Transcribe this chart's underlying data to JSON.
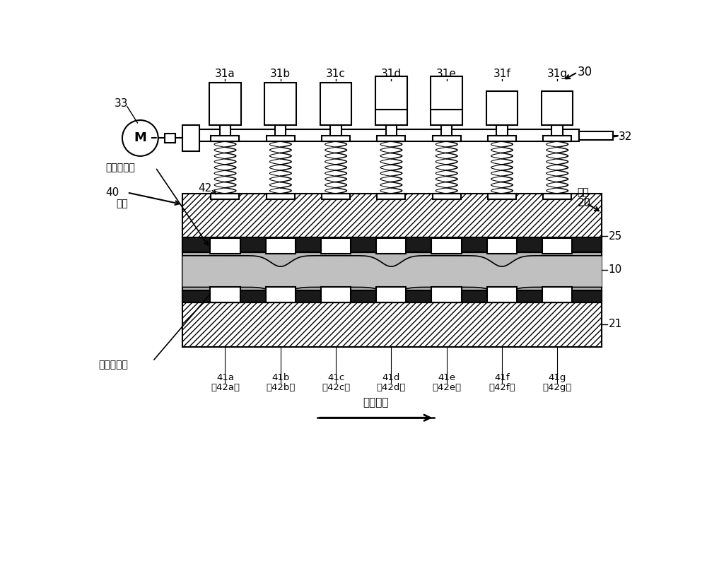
{
  "bg_color": "#ffffff",
  "line_color": "#000000",
  "dark_gray": "#1a1a1a",
  "light_gray": "#b8b8b8",
  "figsize": [
    10.0,
    8.01
  ],
  "dpi": 100,
  "labels_top": [
    "31a",
    "31b",
    "31c",
    "31d",
    "31e",
    "31f",
    "31g"
  ],
  "labels_bottom_41": [
    "41a",
    "41b",
    "41c",
    "41d",
    "41e",
    "41f",
    "41g"
  ],
  "labels_bottom_42": [
    "（42a）",
    "（42b）",
    "（42c）",
    "（42d）",
    "（42e）",
    "（42f）",
    "（42g）"
  ],
  "upper_side_label": "上侧凸缘部",
  "lower_side_label": "下侧凸缘部",
  "inlet_label": "入口",
  "outlet_label": "出口",
  "direction_label": "输送方向",
  "motor_label": "M"
}
